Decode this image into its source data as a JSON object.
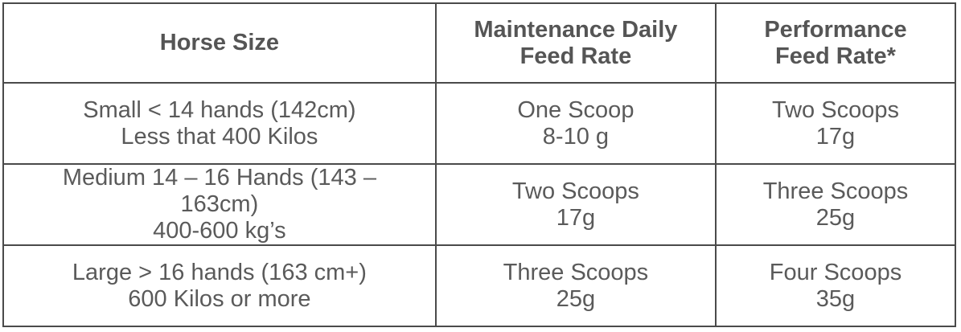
{
  "table": {
    "headers": [
      {
        "lines": [
          "Horse Size"
        ]
      },
      {
        "lines": [
          "Maintenance Daily",
          "Feed Rate"
        ]
      },
      {
        "lines": [
          "Performance",
          "Feed Rate*"
        ]
      }
    ],
    "rows": [
      {
        "size": [
          "Small < 14 hands (142cm)",
          "Less that 400 Kilos"
        ],
        "maintenance": [
          "One Scoop",
          "8-10 g"
        ],
        "performance": [
          "Two Scoops",
          "17g"
        ]
      },
      {
        "size": [
          "Medium 14 – 16 Hands (143 –",
          "163cm)",
          "400-600 kg’s"
        ],
        "maintenance": [
          "Two Scoops",
          "17g"
        ],
        "performance": [
          "Three Scoops",
          "25g"
        ]
      },
      {
        "size": [
          "Large > 16 hands (163 cm+)",
          "600 Kilos or more"
        ],
        "maintenance": [
          "Three Scoops",
          "25g"
        ],
        "performance": [
          "Four Scoops",
          "35g"
        ]
      }
    ]
  }
}
